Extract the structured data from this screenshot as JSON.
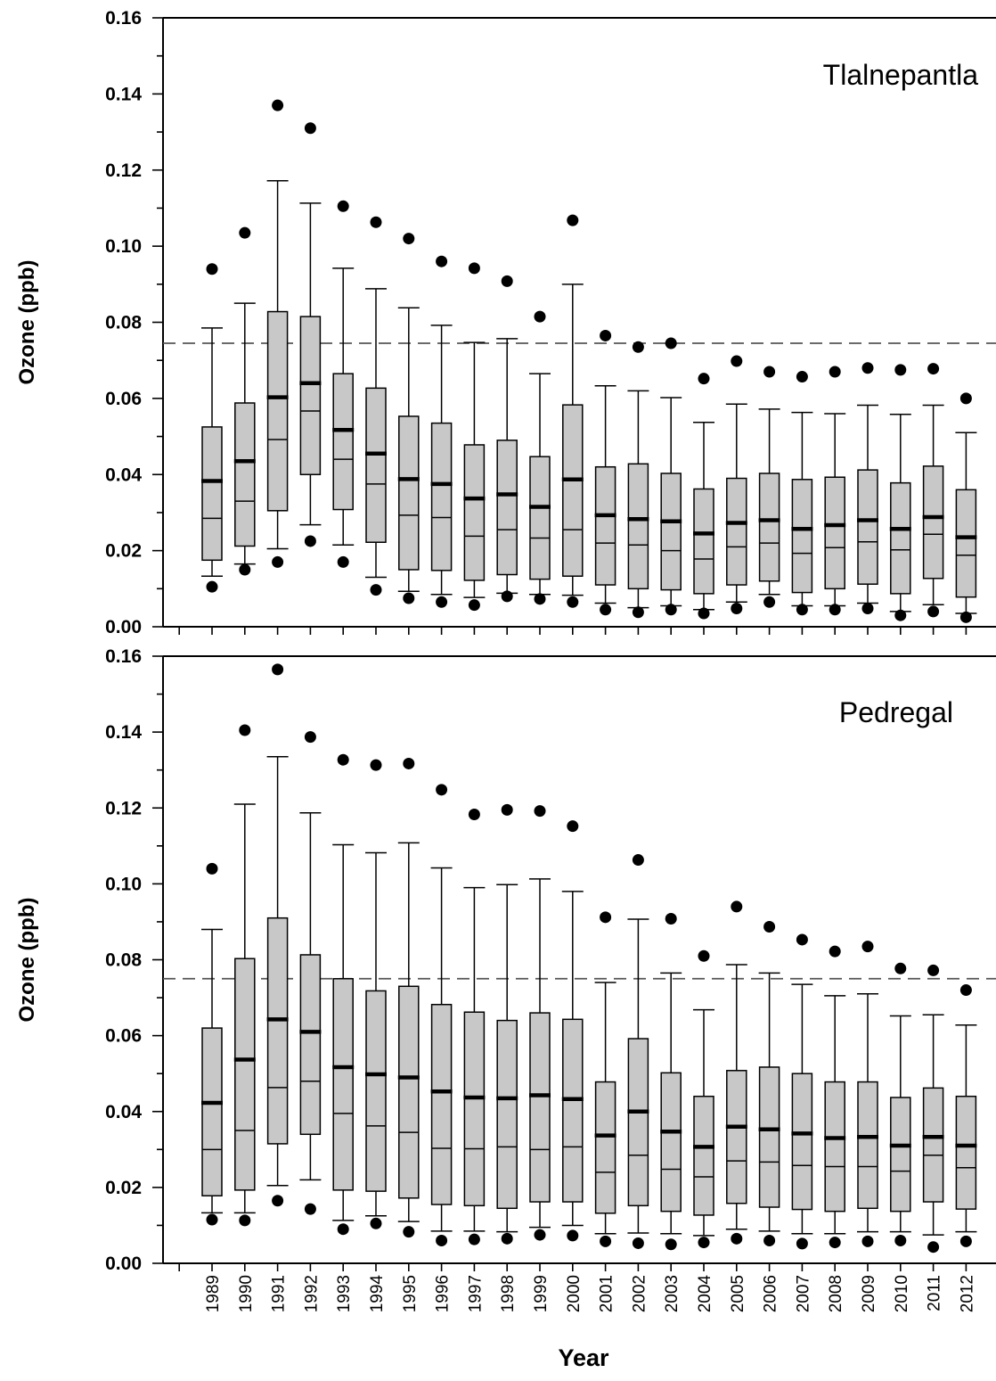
{
  "chart_data": {
    "type": "box",
    "xlabel": "Year",
    "categories": [
      "1989",
      "1990",
      "1991",
      "1992",
      "1993",
      "1994",
      "1995",
      "1996",
      "1997",
      "1998",
      "1999",
      "2000",
      "2001",
      "2002",
      "2003",
      "2004",
      "2005",
      "2006",
      "2007",
      "2008",
      "2009",
      "2010",
      "2011",
      "2012"
    ],
    "yticks": [
      "0.00",
      "0.02",
      "0.04",
      "0.06",
      "0.08",
      "0.10",
      "0.12",
      "0.14",
      "0.16"
    ],
    "panels": [
      {
        "title": "Tlalnepantla",
        "ylabel": "Ozone (ppb)",
        "ylim": [
          0,
          0.16
        ],
        "reference_line": 0.0745,
        "boxes": [
          {
            "year": "1989",
            "wlo": 0.0133,
            "q1": 0.0175,
            "median": 0.0285,
            "mean": 0.0383,
            "q3": 0.0525,
            "whi": 0.0785,
            "olo": 0.0105,
            "ohi": 0.094
          },
          {
            "year": "1990",
            "wlo": 0.0165,
            "q1": 0.0212,
            "median": 0.033,
            "mean": 0.0435,
            "q3": 0.0588,
            "whi": 0.085,
            "olo": 0.015,
            "ohi": 0.1035
          },
          {
            "year": "1991",
            "wlo": 0.0205,
            "q1": 0.0305,
            "median": 0.0492,
            "mean": 0.0603,
            "q3": 0.0828,
            "whi": 0.1172,
            "olo": 0.017,
            "ohi": 0.137
          },
          {
            "year": "1992",
            "wlo": 0.0268,
            "q1": 0.04,
            "median": 0.0567,
            "mean": 0.064,
            "q3": 0.0815,
            "whi": 0.1113,
            "olo": 0.0225,
            "ohi": 0.131
          },
          {
            "year": "1993",
            "wlo": 0.0215,
            "q1": 0.0308,
            "median": 0.044,
            "mean": 0.0517,
            "q3": 0.0665,
            "whi": 0.0942,
            "olo": 0.017,
            "ohi": 0.1105
          },
          {
            "year": "1994",
            "wlo": 0.013,
            "q1": 0.0222,
            "median": 0.0375,
            "mean": 0.0455,
            "q3": 0.0627,
            "whi": 0.0888,
            "olo": 0.0097,
            "ohi": 0.1063
          },
          {
            "year": "1995",
            "wlo": 0.0093,
            "q1": 0.015,
            "median": 0.0293,
            "mean": 0.0388,
            "q3": 0.0553,
            "whi": 0.0838,
            "olo": 0.0075,
            "ohi": 0.102
          },
          {
            "year": "1996",
            "wlo": 0.0085,
            "q1": 0.0148,
            "median": 0.0287,
            "mean": 0.0375,
            "q3": 0.0535,
            "whi": 0.0792,
            "olo": 0.0065,
            "ohi": 0.096
          },
          {
            "year": "1997",
            "wlo": 0.0077,
            "q1": 0.0122,
            "median": 0.0238,
            "mean": 0.0337,
            "q3": 0.0478,
            "whi": 0.0747,
            "olo": 0.0057,
            "ohi": 0.0942
          },
          {
            "year": "1998",
            "wlo": 0.0088,
            "q1": 0.0137,
            "median": 0.0255,
            "mean": 0.0348,
            "q3": 0.049,
            "whi": 0.0757,
            "olo": 0.008,
            "ohi": 0.0908
          },
          {
            "year": "1999",
            "wlo": 0.0085,
            "q1": 0.0125,
            "median": 0.0233,
            "mean": 0.0315,
            "q3": 0.0447,
            "whi": 0.0665,
            "olo": 0.0073,
            "ohi": 0.0815
          },
          {
            "year": "2000",
            "wlo": 0.0083,
            "q1": 0.0133,
            "median": 0.0255,
            "mean": 0.0387,
            "q3": 0.0583,
            "whi": 0.09,
            "olo": 0.0065,
            "ohi": 0.1068
          },
          {
            "year": "2001",
            "wlo": 0.0062,
            "q1": 0.011,
            "median": 0.022,
            "mean": 0.0293,
            "q3": 0.042,
            "whi": 0.0633,
            "olo": 0.0045,
            "ohi": 0.0765
          },
          {
            "year": "2002",
            "wlo": 0.005,
            "q1": 0.01,
            "median": 0.0215,
            "mean": 0.0283,
            "q3": 0.0428,
            "whi": 0.062,
            "olo": 0.0038,
            "ohi": 0.0735
          },
          {
            "year": "2003",
            "wlo": 0.0055,
            "q1": 0.0097,
            "median": 0.02,
            "mean": 0.0277,
            "q3": 0.0403,
            "whi": 0.0602,
            "olo": 0.0045,
            "ohi": 0.0745
          },
          {
            "year": "2004",
            "wlo": 0.0045,
            "q1": 0.0087,
            "median": 0.0178,
            "mean": 0.0245,
            "q3": 0.0362,
            "whi": 0.0537,
            "olo": 0.0035,
            "ohi": 0.0652
          },
          {
            "year": "2005",
            "wlo": 0.0065,
            "q1": 0.011,
            "median": 0.021,
            "mean": 0.0273,
            "q3": 0.039,
            "whi": 0.0585,
            "olo": 0.0048,
            "ohi": 0.0698
          },
          {
            "year": "2006",
            "wlo": 0.0085,
            "q1": 0.012,
            "median": 0.022,
            "mean": 0.028,
            "q3": 0.0403,
            "whi": 0.0572,
            "olo": 0.0065,
            "ohi": 0.067
          },
          {
            "year": "2007",
            "wlo": 0.0055,
            "q1": 0.009,
            "median": 0.0193,
            "mean": 0.0257,
            "q3": 0.0387,
            "whi": 0.0563,
            "olo": 0.0045,
            "ohi": 0.0657
          },
          {
            "year": "2008",
            "wlo": 0.0055,
            "q1": 0.01,
            "median": 0.0208,
            "mean": 0.0267,
            "q3": 0.0393,
            "whi": 0.056,
            "olo": 0.0045,
            "ohi": 0.067
          },
          {
            "year": "2009",
            "wlo": 0.0062,
            "q1": 0.0112,
            "median": 0.0223,
            "mean": 0.028,
            "q3": 0.0412,
            "whi": 0.0582,
            "olo": 0.0048,
            "ohi": 0.068
          },
          {
            "year": "2010",
            "wlo": 0.004,
            "q1": 0.0087,
            "median": 0.0202,
            "mean": 0.0257,
            "q3": 0.0378,
            "whi": 0.0558,
            "olo": 0.003,
            "ohi": 0.0675
          },
          {
            "year": "2011",
            "wlo": 0.0058,
            "q1": 0.0127,
            "median": 0.0243,
            "mean": 0.0288,
            "q3": 0.0422,
            "whi": 0.0582,
            "olo": 0.004,
            "ohi": 0.0678
          },
          {
            "year": "2012",
            "wlo": 0.0035,
            "q1": 0.0078,
            "median": 0.0188,
            "mean": 0.0235,
            "q3": 0.036,
            "whi": 0.051,
            "olo": 0.0025,
            "ohi": 0.06
          }
        ]
      },
      {
        "title": "Pedregal",
        "ylabel": "Ozone (ppb)",
        "ylim": [
          0,
          0.16
        ],
        "reference_line": 0.075,
        "boxes": [
          {
            "year": "1989",
            "wlo": 0.0133,
            "q1": 0.0178,
            "median": 0.03,
            "mean": 0.0423,
            "q3": 0.062,
            "whi": 0.088,
            "olo": 0.0115,
            "ohi": 0.104
          },
          {
            "year": "1990",
            "wlo": 0.0133,
            "q1": 0.0193,
            "median": 0.035,
            "mean": 0.0537,
            "q3": 0.0803,
            "whi": 0.121,
            "olo": 0.0113,
            "ohi": 0.1405
          },
          {
            "year": "1991",
            "wlo": 0.0205,
            "q1": 0.0315,
            "median": 0.0463,
            "mean": 0.0643,
            "q3": 0.091,
            "whi": 0.1335,
            "olo": 0.0165,
            "ohi": 0.1565
          },
          {
            "year": "1992",
            "wlo": 0.022,
            "q1": 0.034,
            "median": 0.048,
            "mean": 0.061,
            "q3": 0.0813,
            "whi": 0.1187,
            "olo": 0.0143,
            "ohi": 0.1387
          },
          {
            "year": "1993",
            "wlo": 0.0113,
            "q1": 0.0193,
            "median": 0.0395,
            "mean": 0.0517,
            "q3": 0.075,
            "whi": 0.1103,
            "olo": 0.009,
            "ohi": 0.1327
          },
          {
            "year": "1994",
            "wlo": 0.0125,
            "q1": 0.019,
            "median": 0.0362,
            "mean": 0.0498,
            "q3": 0.0718,
            "whi": 0.1082,
            "olo": 0.0105,
            "ohi": 0.1313
          },
          {
            "year": "1995",
            "wlo": 0.011,
            "q1": 0.0172,
            "median": 0.0345,
            "mean": 0.049,
            "q3": 0.073,
            "whi": 0.1108,
            "olo": 0.0083,
            "ohi": 0.1317
          },
          {
            "year": "1996",
            "wlo": 0.0085,
            "q1": 0.0155,
            "median": 0.0303,
            "mean": 0.0453,
            "q3": 0.0682,
            "whi": 0.1042,
            "olo": 0.006,
            "ohi": 0.1248
          },
          {
            "year": "1997",
            "wlo": 0.0085,
            "q1": 0.0152,
            "median": 0.0302,
            "mean": 0.0437,
            "q3": 0.0662,
            "whi": 0.099,
            "olo": 0.0063,
            "ohi": 0.1183
          },
          {
            "year": "1998",
            "wlo": 0.0083,
            "q1": 0.0145,
            "median": 0.0307,
            "mean": 0.0435,
            "q3": 0.064,
            "whi": 0.0998,
            "olo": 0.0065,
            "ohi": 0.1195
          },
          {
            "year": "1999",
            "wlo": 0.0095,
            "q1": 0.0162,
            "median": 0.03,
            "mean": 0.0443,
            "q3": 0.066,
            "whi": 0.1013,
            "olo": 0.0075,
            "ohi": 0.1192
          },
          {
            "year": "2000",
            "wlo": 0.01,
            "q1": 0.0162,
            "median": 0.0307,
            "mean": 0.0433,
            "q3": 0.0643,
            "whi": 0.098,
            "olo": 0.0073,
            "ohi": 0.1152
          },
          {
            "year": "2001",
            "wlo": 0.0078,
            "q1": 0.0132,
            "median": 0.024,
            "mean": 0.0337,
            "q3": 0.0478,
            "whi": 0.074,
            "olo": 0.0058,
            "ohi": 0.0912
          },
          {
            "year": "2002",
            "wlo": 0.008,
            "q1": 0.0152,
            "median": 0.0285,
            "mean": 0.04,
            "q3": 0.0592,
            "whi": 0.0907,
            "olo": 0.0053,
            "ohi": 0.1063
          },
          {
            "year": "2003",
            "wlo": 0.0078,
            "q1": 0.0137,
            "median": 0.0248,
            "mean": 0.0347,
            "q3": 0.0502,
            "whi": 0.0765,
            "olo": 0.005,
            "ohi": 0.0908
          },
          {
            "year": "2004",
            "wlo": 0.0073,
            "q1": 0.0127,
            "median": 0.0228,
            "mean": 0.0307,
            "q3": 0.044,
            "whi": 0.0668,
            "olo": 0.0055,
            "ohi": 0.081
          },
          {
            "year": "2005",
            "wlo": 0.009,
            "q1": 0.0158,
            "median": 0.027,
            "mean": 0.036,
            "q3": 0.0508,
            "whi": 0.0787,
            "olo": 0.0065,
            "ohi": 0.094
          },
          {
            "year": "2006",
            "wlo": 0.0085,
            "q1": 0.0148,
            "median": 0.0267,
            "mean": 0.0353,
            "q3": 0.0517,
            "whi": 0.0765,
            "olo": 0.006,
            "ohi": 0.0887
          },
          {
            "year": "2007",
            "wlo": 0.0078,
            "q1": 0.0142,
            "median": 0.0258,
            "mean": 0.0342,
            "q3": 0.05,
            "whi": 0.0735,
            "olo": 0.0052,
            "ohi": 0.0853
          },
          {
            "year": "2008",
            "wlo": 0.0078,
            "q1": 0.0137,
            "median": 0.0255,
            "mean": 0.033,
            "q3": 0.0478,
            "whi": 0.0705,
            "olo": 0.0055,
            "ohi": 0.0822
          },
          {
            "year": "2009",
            "wlo": 0.0083,
            "q1": 0.0145,
            "median": 0.0255,
            "mean": 0.0333,
            "q3": 0.0478,
            "whi": 0.071,
            "olo": 0.0058,
            "ohi": 0.0835
          },
          {
            "year": "2010",
            "wlo": 0.0083,
            "q1": 0.0137,
            "median": 0.0243,
            "mean": 0.031,
            "q3": 0.0437,
            "whi": 0.0652,
            "olo": 0.006,
            "ohi": 0.0777
          },
          {
            "year": "2011",
            "wlo": 0.0075,
            "q1": 0.0162,
            "median": 0.0285,
            "mean": 0.0333,
            "q3": 0.0462,
            "whi": 0.0655,
            "olo": 0.0043,
            "ohi": 0.0772
          },
          {
            "year": "2012",
            "wlo": 0.0083,
            "q1": 0.0143,
            "median": 0.0252,
            "mean": 0.031,
            "q3": 0.044,
            "whi": 0.0628,
            "olo": 0.0058,
            "ohi": 0.072
          }
        ]
      }
    ],
    "box_fill": "#c8c8c8",
    "line_color": "#000000",
    "reference_line_color": "#555555"
  }
}
